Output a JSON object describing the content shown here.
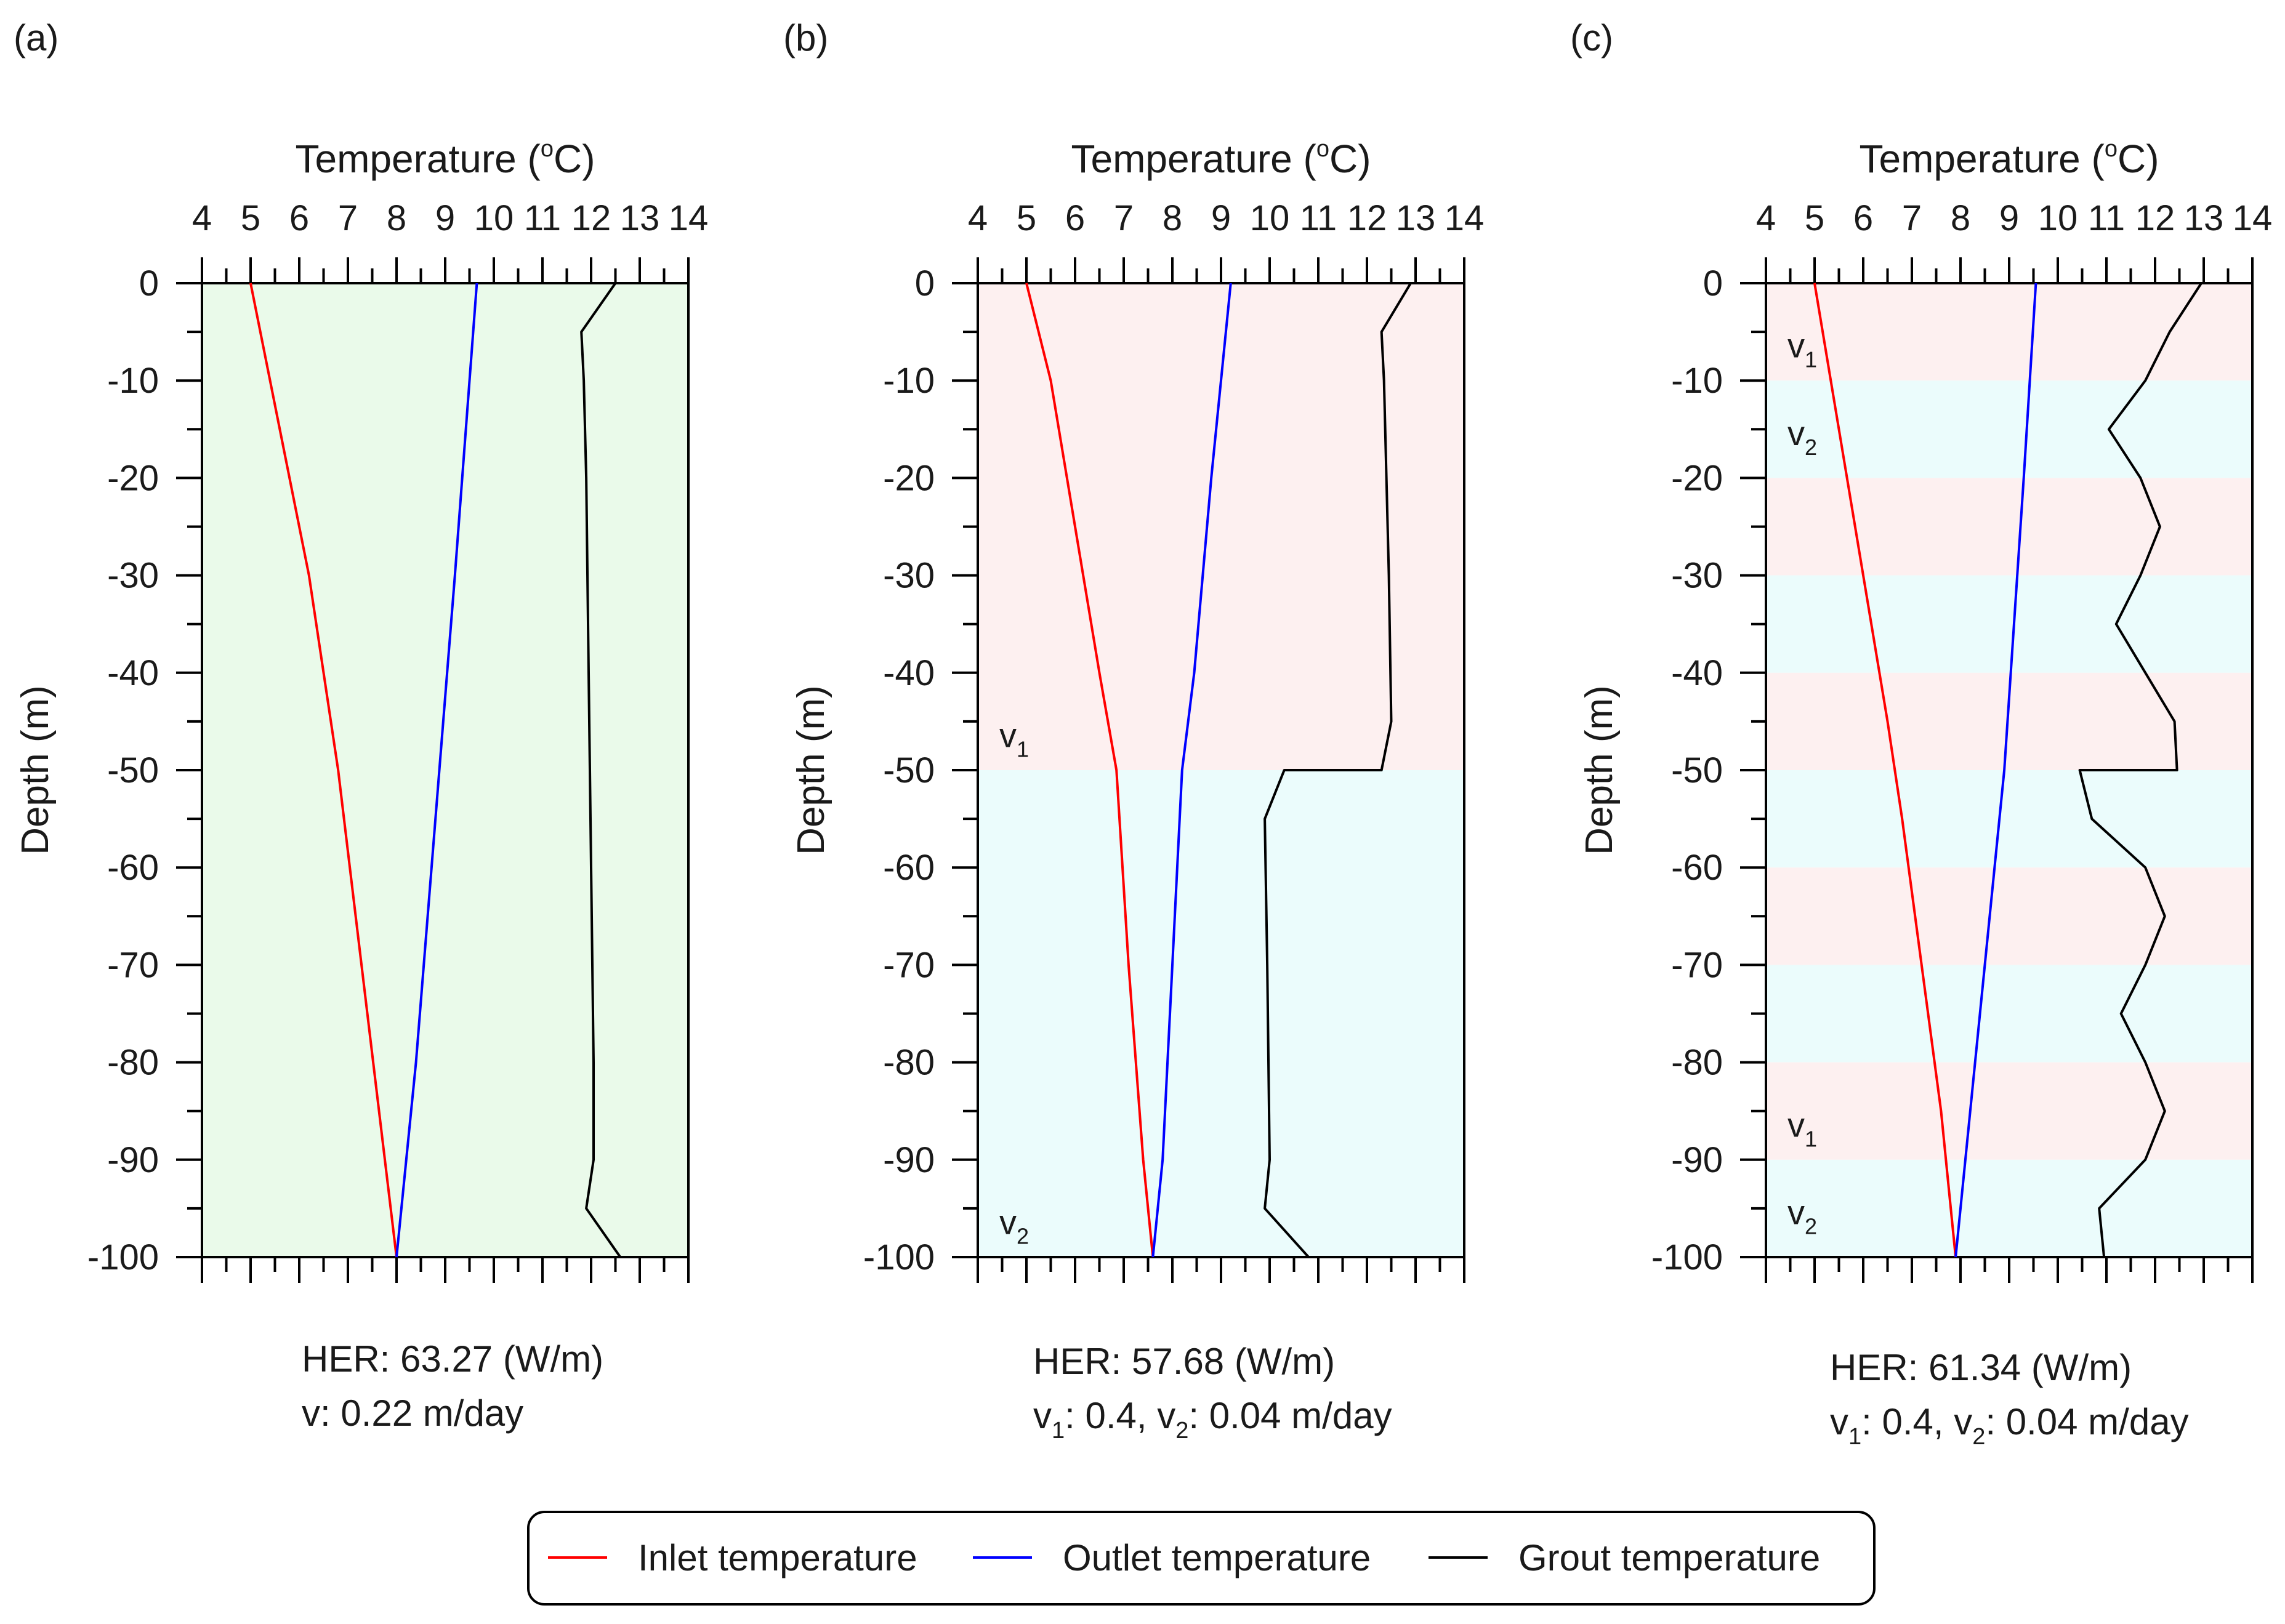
{
  "legend": {
    "placement": "bottom-center",
    "items": [
      {
        "label": "Inlet temperature",
        "color": "#ff0000"
      },
      {
        "label": "Outlet temperature",
        "color": "#0000ff"
      },
      {
        "label": "Grout temperature",
        "color": "#000000"
      }
    ]
  },
  "chart_data": [
    {
      "type": "line",
      "panel_label": "(a)",
      "x_title_prefix": "Temperature (",
      "x_title_degree": "o",
      "x_title_suffix": "C)",
      "ylabel": "Depth (m)",
      "xlim": [
        4,
        14
      ],
      "ylim": [
        -100,
        0
      ],
      "x_ticks": [
        4,
        5,
        6,
        7,
        8,
        9,
        10,
        11,
        12,
        13,
        14
      ],
      "y_ticks": [
        0,
        -10,
        -20,
        -30,
        -40,
        -50,
        -60,
        -70,
        -80,
        -90,
        -100
      ],
      "bands": [
        {
          "from": 0,
          "to": -100,
          "color": "#eafaea"
        }
      ],
      "zone_labels": [],
      "series": [
        {
          "key": "inlet",
          "color": "#ff0000",
          "points": [
            [
              5.0,
              0
            ],
            [
              5.6,
              -15
            ],
            [
              6.2,
              -30
            ],
            [
              6.8,
              -50
            ],
            [
              7.4,
              -75
            ],
            [
              8.0,
              -100
            ]
          ]
        },
        {
          "key": "outlet",
          "color": "#0000ff",
          "points": [
            [
              9.65,
              0
            ],
            [
              9.2,
              -30
            ],
            [
              8.8,
              -55
            ],
            [
              8.4,
              -80
            ],
            [
              8.0,
              -100
            ]
          ]
        },
        {
          "key": "grout",
          "color": "#000000",
          "points": [
            [
              12.5,
              0
            ],
            [
              11.8,
              -5
            ],
            [
              11.85,
              -10
            ],
            [
              11.9,
              -20
            ],
            [
              11.95,
              -40
            ],
            [
              12.0,
              -60
            ],
            [
              12.05,
              -80
            ],
            [
              12.05,
              -90
            ],
            [
              11.9,
              -95
            ],
            [
              12.6,
              -100
            ]
          ]
        }
      ],
      "annotation_lines": [
        {
          "label": "HER:  ",
          "value": "63.27 (W/m)"
        },
        {
          "label": "v: ",
          "value": "0.22 m/day"
        }
      ]
    },
    {
      "type": "line",
      "panel_label": "(b)",
      "x_title_prefix": "Temperature (",
      "x_title_degree": "o",
      "x_title_suffix": "C)",
      "ylabel": "Depth (m)",
      "xlim": [
        4,
        14
      ],
      "ylim": [
        -100,
        0
      ],
      "x_ticks": [
        4,
        5,
        6,
        7,
        8,
        9,
        10,
        11,
        12,
        13,
        14
      ],
      "y_ticks": [
        0,
        -10,
        -20,
        -30,
        -40,
        -50,
        -60,
        -70,
        -80,
        -90,
        -100
      ],
      "bands": [
        {
          "from": 0,
          "to": -50,
          "color": "#fdf0f0"
        },
        {
          "from": -50,
          "to": -100,
          "color": "#ebfcfc"
        }
      ],
      "zone_labels": [
        {
          "base": "v",
          "sub": "1",
          "depth": -47
        },
        {
          "base": "v",
          "sub": "2",
          "depth": -97
        }
      ],
      "series": [
        {
          "key": "inlet",
          "color": "#ff0000",
          "points": [
            [
              5.0,
              0
            ],
            [
              5.5,
              -10
            ],
            [
              6.0,
              -25
            ],
            [
              6.5,
              -40
            ],
            [
              6.85,
              -50
            ],
            [
              7.1,
              -70
            ],
            [
              7.4,
              -90
            ],
            [
              7.6,
              -100
            ]
          ]
        },
        {
          "key": "outlet",
          "color": "#0000ff",
          "points": [
            [
              9.2,
              0
            ],
            [
              8.8,
              -20
            ],
            [
              8.45,
              -40
            ],
            [
              8.2,
              -50
            ],
            [
              8.0,
              -70
            ],
            [
              7.8,
              -90
            ],
            [
              7.6,
              -100
            ]
          ]
        },
        {
          "key": "grout",
          "color": "#000000",
          "points": [
            [
              12.9,
              0
            ],
            [
              12.3,
              -5
            ],
            [
              12.35,
              -10
            ],
            [
              12.45,
              -30
            ],
            [
              12.5,
              -45
            ],
            [
              12.3,
              -50
            ],
            [
              10.3,
              -50
            ],
            [
              9.9,
              -55
            ],
            [
              9.95,
              -70
            ],
            [
              10.0,
              -90
            ],
            [
              9.9,
              -95
            ],
            [
              10.8,
              -100
            ]
          ]
        }
      ],
      "annotation_lines": [
        {
          "label": "HER:  ",
          "value": "57.68 (W/m)"
        },
        {
          "v1": "0.4",
          "v2": "0.04 m/day"
        }
      ]
    },
    {
      "type": "line",
      "panel_label": "(c)",
      "x_title_prefix": "Temperature (",
      "x_title_degree": "o",
      "x_title_suffix": "C)",
      "ylabel": "Depth (m)",
      "xlim": [
        4,
        14
      ],
      "ylim": [
        -100,
        0
      ],
      "x_ticks": [
        4,
        5,
        6,
        7,
        8,
        9,
        10,
        11,
        12,
        13,
        14
      ],
      "y_ticks": [
        0,
        -10,
        -20,
        -30,
        -40,
        -50,
        -60,
        -70,
        -80,
        -90,
        -100
      ],
      "bands": [
        {
          "from": 0,
          "to": -10,
          "color": "#fdf0f0"
        },
        {
          "from": -10,
          "to": -20,
          "color": "#ebfcfc"
        },
        {
          "from": -20,
          "to": -30,
          "color": "#fdf0f0"
        },
        {
          "from": -30,
          "to": -40,
          "color": "#ebfcfc"
        },
        {
          "from": -40,
          "to": -50,
          "color": "#fdf0f0"
        },
        {
          "from": -50,
          "to": -60,
          "color": "#ebfcfc"
        },
        {
          "from": -60,
          "to": -70,
          "color": "#fdf0f0"
        },
        {
          "from": -70,
          "to": -80,
          "color": "#ebfcfc"
        },
        {
          "from": -80,
          "to": -90,
          "color": "#fdf0f0"
        },
        {
          "from": -90,
          "to": -100,
          "color": "#ebfcfc"
        }
      ],
      "zone_labels": [
        {
          "base": "v",
          "sub": "1",
          "depth": -7
        },
        {
          "base": "v",
          "sub": "2",
          "depth": -16
        },
        {
          "base": "v",
          "sub": "1",
          "depth": -87
        },
        {
          "base": "v",
          "sub": "2",
          "depth": -96
        }
      ],
      "series": [
        {
          "key": "inlet",
          "color": "#ff0000",
          "points": [
            [
              5.0,
              0
            ],
            [
              5.5,
              -15
            ],
            [
              6.0,
              -30
            ],
            [
              6.5,
              -45
            ],
            [
              6.8,
              -55
            ],
            [
              7.2,
              -70
            ],
            [
              7.6,
              -85
            ],
            [
              7.9,
              -100
            ]
          ]
        },
        {
          "key": "outlet",
          "color": "#0000ff",
          "points": [
            [
              9.55,
              0
            ],
            [
              9.3,
              -20
            ],
            [
              9.1,
              -35
            ],
            [
              8.9,
              -50
            ],
            [
              8.7,
              -60
            ],
            [
              8.4,
              -75
            ],
            [
              8.2,
              -85
            ],
            [
              7.9,
              -100
            ]
          ]
        },
        {
          "key": "grout",
          "color": "#000000",
          "points": [
            [
              12.95,
              0
            ],
            [
              12.3,
              -5
            ],
            [
              11.8,
              -10
            ],
            [
              11.05,
              -15
            ],
            [
              11.7,
              -20
            ],
            [
              12.1,
              -25
            ],
            [
              11.7,
              -30
            ],
            [
              11.2,
              -35
            ],
            [
              11.8,
              -40
            ],
            [
              12.4,
              -45
            ],
            [
              12.45,
              -50
            ],
            [
              10.45,
              -50
            ],
            [
              10.7,
              -55
            ],
            [
              11.8,
              -60
            ],
            [
              12.2,
              -65
            ],
            [
              11.8,
              -70
            ],
            [
              11.3,
              -75
            ],
            [
              11.8,
              -80
            ],
            [
              12.2,
              -85
            ],
            [
              11.8,
              -90
            ],
            [
              10.85,
              -95
            ],
            [
              10.95,
              -100
            ]
          ]
        }
      ],
      "annotation_lines": [
        {
          "label": "HER:  ",
          "value": "61.34 (W/m)"
        },
        {
          "v1": "0.4",
          "v2": "0.04 m/day"
        }
      ]
    }
  ]
}
